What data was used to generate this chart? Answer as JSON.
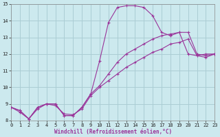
{
  "xlabel": "Windchill (Refroidissement éolien,°C)",
  "xlim": [
    0,
    23
  ],
  "ylim": [
    8,
    15
  ],
  "xticks": [
    0,
    1,
    2,
    3,
    4,
    5,
    6,
    7,
    8,
    9,
    10,
    11,
    12,
    13,
    14,
    15,
    16,
    17,
    18,
    19,
    20,
    21,
    22,
    23
  ],
  "yticks": [
    8,
    9,
    10,
    11,
    12,
    13,
    14,
    15
  ],
  "background_color": "#cce9ee",
  "grid_color": "#aacdd4",
  "line_color": "#993399",
  "curve1_x": [
    0,
    1,
    2,
    3,
    4,
    5,
    6,
    7,
    8,
    9,
    10,
    11,
    12,
    13,
    14,
    15,
    16,
    17,
    18,
    19,
    20,
    21,
    22,
    23
  ],
  "curve1_y": [
    8.8,
    8.6,
    8.1,
    8.8,
    9.0,
    9.0,
    8.3,
    8.3,
    8.8,
    9.6,
    11.6,
    13.9,
    14.8,
    14.9,
    14.9,
    14.8,
    14.3,
    13.3,
    13.1,
    13.3,
    12.0,
    11.9,
    12.0,
    12.0
  ],
  "curve2_x": [
    0,
    1,
    2,
    3,
    4,
    5,
    6,
    7,
    8,
    9,
    10,
    11,
    12,
    13,
    14,
    15,
    16,
    17,
    18,
    19,
    20,
    21,
    22,
    23
  ],
  "curve2_y": [
    8.8,
    8.6,
    8.1,
    8.8,
    9.0,
    9.0,
    8.3,
    8.3,
    8.8,
    9.6,
    10.1,
    10.8,
    11.5,
    12.0,
    12.3,
    12.6,
    12.9,
    13.1,
    13.2,
    13.3,
    13.3,
    12.0,
    11.9,
    12.0
  ],
  "curve3_x": [
    0,
    1,
    2,
    3,
    4,
    5,
    6,
    7,
    8,
    9,
    10,
    11,
    12,
    13,
    14,
    15,
    16,
    17,
    18,
    19,
    20,
    21,
    22,
    23
  ],
  "curve3_y": [
    8.8,
    8.5,
    8.1,
    8.7,
    9.0,
    8.9,
    8.4,
    8.35,
    8.7,
    9.5,
    10.0,
    10.4,
    10.8,
    11.2,
    11.5,
    11.8,
    12.1,
    12.3,
    12.6,
    12.7,
    12.9,
    11.9,
    11.8,
    12.0
  ]
}
